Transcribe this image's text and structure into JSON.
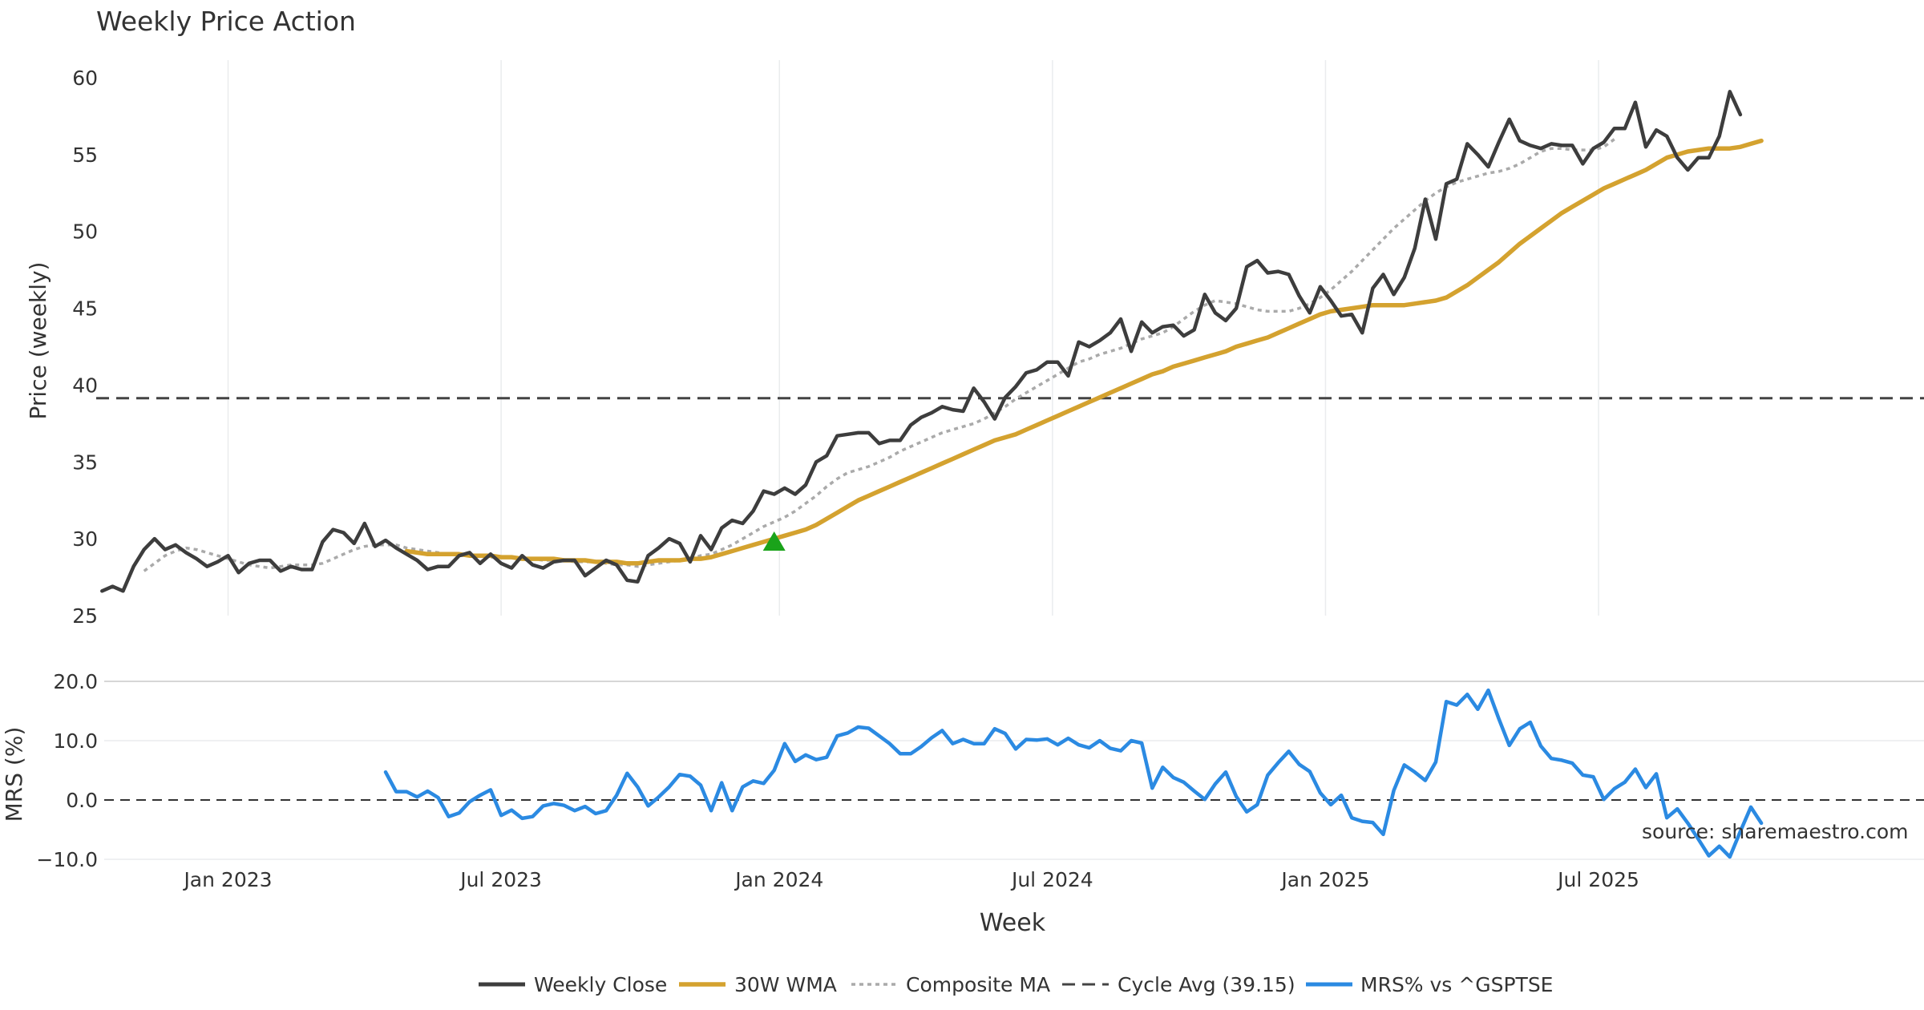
{
  "chart_data": {
    "type": "line",
    "title": "Weekly Price Action",
    "xlabel": "Week",
    "source_note": "source: sharemaestro.com",
    "x_ticks": [
      "Jan 2023",
      "Jul 2023",
      "Jan 2024",
      "Jul 2024",
      "Jan 2025",
      "Jul 2025"
    ],
    "x_tick_index": [
      12,
      38,
      64.5,
      90.5,
      116.5,
      142.5
    ],
    "x_range": [
      -9,
      155
    ],
    "price_panel": {
      "ylabel": "Price (weekly)",
      "ylim": [
        25,
        61
      ],
      "y_ticks": [
        25,
        30,
        35,
        40,
        45,
        50,
        55,
        60
      ],
      "cycle_avg": 39.15,
      "buy_signal": {
        "index": 64,
        "value": 29.8
      }
    },
    "mrs_panel": {
      "ylabel": "MRS (%)",
      "ylim": [
        -10,
        20
      ],
      "y_ticks": [
        20,
        10,
        0,
        -10
      ],
      "y_tick_labels": [
        "20.0",
        "10.0",
        "0.0",
        "−10.0"
      ]
    },
    "legend": [
      "Weekly Close",
      "30W WMA",
      "Composite MA",
      "Cycle Avg (39.15)",
      "MRS% vs ^GSPTSE"
    ],
    "colors": {
      "close": "#3d3d3d",
      "wma": "#d4a22f",
      "composite": "#aaaaaa",
      "cycle": "#444444",
      "mrs": "#2b8ae2",
      "signal": "#1aa31a",
      "grid": "#eaecee"
    },
    "series": [
      {
        "name": "Weekly Close",
        "start_index": 0,
        "values": [
          26.6,
          26.9,
          26.6,
          28.2,
          29.3,
          30.0,
          29.3,
          29.6,
          29.1,
          28.7,
          28.2,
          28.5,
          28.9,
          27.8,
          28.4,
          28.6,
          28.6,
          27.9,
          28.2,
          28.0,
          28.0,
          29.8,
          30.6,
          30.4,
          29.7,
          31.0,
          29.5,
          29.9,
          29.4,
          29.0,
          28.6,
          28.0,
          28.2,
          28.2,
          28.9,
          29.1,
          28.4,
          29.0,
          28.4,
          28.1,
          28.9,
          28.3,
          28.1,
          28.5,
          28.6,
          28.6,
          27.6,
          28.1,
          28.6,
          28.3,
          27.3,
          27.2,
          28.9,
          29.4,
          30.0,
          29.7,
          28.5,
          30.2,
          29.3,
          30.7,
          31.2,
          31.0,
          31.8,
          33.1,
          32.9,
          33.3,
          32.9,
          33.5,
          35.0,
          35.4,
          36.7,
          36.8,
          36.9,
          36.9,
          36.2,
          36.4,
          36.4,
          37.4,
          37.9,
          38.2,
          38.6,
          38.4,
          38.3,
          39.8,
          38.9,
          37.8,
          39.2,
          39.9,
          40.8,
          41.0,
          41.5,
          41.5,
          40.6,
          42.8,
          42.5,
          42.9,
          43.4,
          44.3,
          42.2,
          44.1,
          43.4,
          43.8,
          43.9,
          43.2,
          43.6,
          45.9,
          44.7,
          44.2,
          45.0,
          47.7,
          48.1,
          47.3,
          47.4,
          47.2,
          45.8,
          44.7,
          46.4,
          45.5,
          44.5,
          44.6,
          43.4,
          46.3,
          47.2,
          45.9,
          47.0,
          48.9,
          52.1,
          49.5,
          53.1,
          53.4,
          55.7,
          55.0,
          54.2,
          55.8,
          57.3,
          55.9,
          55.6,
          55.4,
          55.7,
          55.6,
          55.6,
          54.4,
          55.4,
          55.8,
          56.7,
          56.7,
          58.4,
          55.5,
          56.6,
          56.2,
          54.8,
          54.0,
          54.8,
          54.8,
          56.2,
          59.1,
          57.6
        ]
      },
      {
        "name": "30W WMA",
        "start_index": 29,
        "values": [
          29.2,
          29.1,
          29.0,
          29.0,
          29.0,
          29.0,
          28.9,
          28.9,
          28.9,
          28.8,
          28.8,
          28.7,
          28.7,
          28.7,
          28.7,
          28.6,
          28.6,
          28.6,
          28.5,
          28.5,
          28.5,
          28.4,
          28.4,
          28.5,
          28.6,
          28.6,
          28.6,
          28.7,
          28.7,
          28.8,
          29.0,
          29.2,
          29.4,
          29.6,
          29.8,
          30.0,
          30.2,
          30.4,
          30.6,
          30.9,
          31.3,
          31.7,
          32.1,
          32.5,
          32.8,
          33.1,
          33.4,
          33.7,
          34.0,
          34.3,
          34.6,
          34.9,
          35.2,
          35.5,
          35.8,
          36.1,
          36.4,
          36.6,
          36.8,
          37.1,
          37.4,
          37.7,
          38.0,
          38.3,
          38.6,
          38.9,
          39.2,
          39.5,
          39.8,
          40.1,
          40.4,
          40.7,
          40.9,
          41.2,
          41.4,
          41.6,
          41.8,
          42.0,
          42.2,
          42.5,
          42.7,
          42.9,
          43.1,
          43.4,
          43.7,
          44.0,
          44.3,
          44.6,
          44.8,
          44.9,
          45.0,
          45.1,
          45.2,
          45.2,
          45.2,
          45.2,
          45.3,
          45.4,
          45.5,
          45.7,
          46.1,
          46.5,
          47.0,
          47.5,
          48.0,
          48.6,
          49.2,
          49.7,
          50.2,
          50.7,
          51.2,
          51.6,
          52.0,
          52.4,
          52.8,
          53.1,
          53.4,
          53.7,
          54.0,
          54.4,
          54.8,
          55.0,
          55.2,
          55.3,
          55.4,
          55.4,
          55.4,
          55.5,
          55.7,
          55.9
        ]
      },
      {
        "name": "Composite MA",
        "start_index": 4,
        "values": [
          27.9,
          28.4,
          28.9,
          29.2,
          29.4,
          29.3,
          29.1,
          28.9,
          28.7,
          28.5,
          28.3,
          28.2,
          28.1,
          28.2,
          28.3,
          28.3,
          28.3,
          28.4,
          28.7,
          29.0,
          29.3,
          29.5,
          29.6,
          29.6,
          29.6,
          29.4,
          29.3,
          29.2,
          29.1,
          29.0,
          28.9,
          28.9,
          28.9,
          28.8,
          28.8,
          28.8,
          28.7,
          28.7,
          28.6,
          28.6,
          28.6,
          28.5,
          28.5,
          28.5,
          28.4,
          28.3,
          28.3,
          28.2,
          28.3,
          28.4,
          28.5,
          28.6,
          28.7,
          28.9,
          29.0,
          29.3,
          29.6,
          30.0,
          30.4,
          30.8,
          31.1,
          31.4,
          31.8,
          32.3,
          32.8,
          33.4,
          33.9,
          34.3,
          34.5,
          34.7,
          35.0,
          35.3,
          35.7,
          36.0,
          36.3,
          36.6,
          36.9,
          37.1,
          37.3,
          37.5,
          37.8,
          38.2,
          38.6,
          39.1,
          39.5,
          39.9,
          40.3,
          40.7,
          41.1,
          41.5,
          41.7,
          42.0,
          42.2,
          42.4,
          42.7,
          43.0,
          43.2,
          43.4,
          43.8,
          44.3,
          44.8,
          45.2,
          45.5,
          45.4,
          45.3,
          45.1,
          44.9,
          44.8,
          44.8,
          44.8,
          45.0,
          45.3,
          45.7,
          46.2,
          46.8,
          47.4,
          48.1,
          48.8,
          49.5,
          50.2,
          50.8,
          51.4,
          52.0,
          52.5,
          52.9,
          53.2,
          53.4,
          53.6,
          53.8,
          53.9,
          54.1,
          54.4,
          54.8,
          55.2,
          55.4,
          55.4,
          55.3,
          55.3,
          55.3,
          55.5,
          56.0
        ]
      },
      {
        "name": "MRS% vs ^GSPTSE",
        "start_index": 27,
        "values": [
          4.7,
          1.4,
          1.4,
          0.5,
          1.5,
          0.4,
          -2.8,
          -2.2,
          -0.3,
          0.8,
          1.7,
          -2.6,
          -1.7,
          -3.1,
          -2.8,
          -1.0,
          -0.6,
          -0.9,
          -1.8,
          -1.1,
          -2.3,
          -1.8,
          0.8,
          4.5,
          2.2,
          -1.0,
          0.5,
          2.2,
          4.3,
          4.0,
          2.5,
          -1.8,
          2.9,
          -1.8,
          2.2,
          3.2,
          2.8,
          5.0,
          9.5,
          6.5,
          7.6,
          6.8,
          7.2,
          10.8,
          11.3,
          12.3,
          12.1,
          10.8,
          9.5,
          7.8,
          7.8,
          9.0,
          10.5,
          11.7,
          9.5,
          10.2,
          9.5,
          9.5,
          12.0,
          11.2,
          8.6,
          10.2,
          10.1,
          10.3,
          9.3,
          10.4,
          9.3,
          8.8,
          10.0,
          8.7,
          8.3,
          10.0,
          9.6,
          2.0,
          5.5,
          3.8,
          3.0,
          1.5,
          0.1,
          2.7,
          4.7,
          0.6,
          -2.0,
          -0.8,
          4.2,
          6.3,
          8.2,
          6.0,
          4.8,
          1.2,
          -0.8,
          0.8,
          -3.0,
          -3.6,
          -3.8,
          -5.8,
          1.6,
          5.9,
          4.7,
          3.3,
          6.4,
          16.6,
          16.0,
          17.8,
          15.3,
          18.5,
          13.7,
          9.2,
          12.0,
          13.1,
          9.1,
          7.0,
          6.7,
          6.2,
          4.2,
          3.9,
          0.1,
          1.9,
          3.0,
          5.2,
          2.1,
          4.4,
          -3.0,
          -1.5,
          -3.9,
          -6.6,
          -9.4,
          -7.8,
          -9.6,
          -5.3,
          -1.2,
          -3.9
        ]
      }
    ]
  }
}
